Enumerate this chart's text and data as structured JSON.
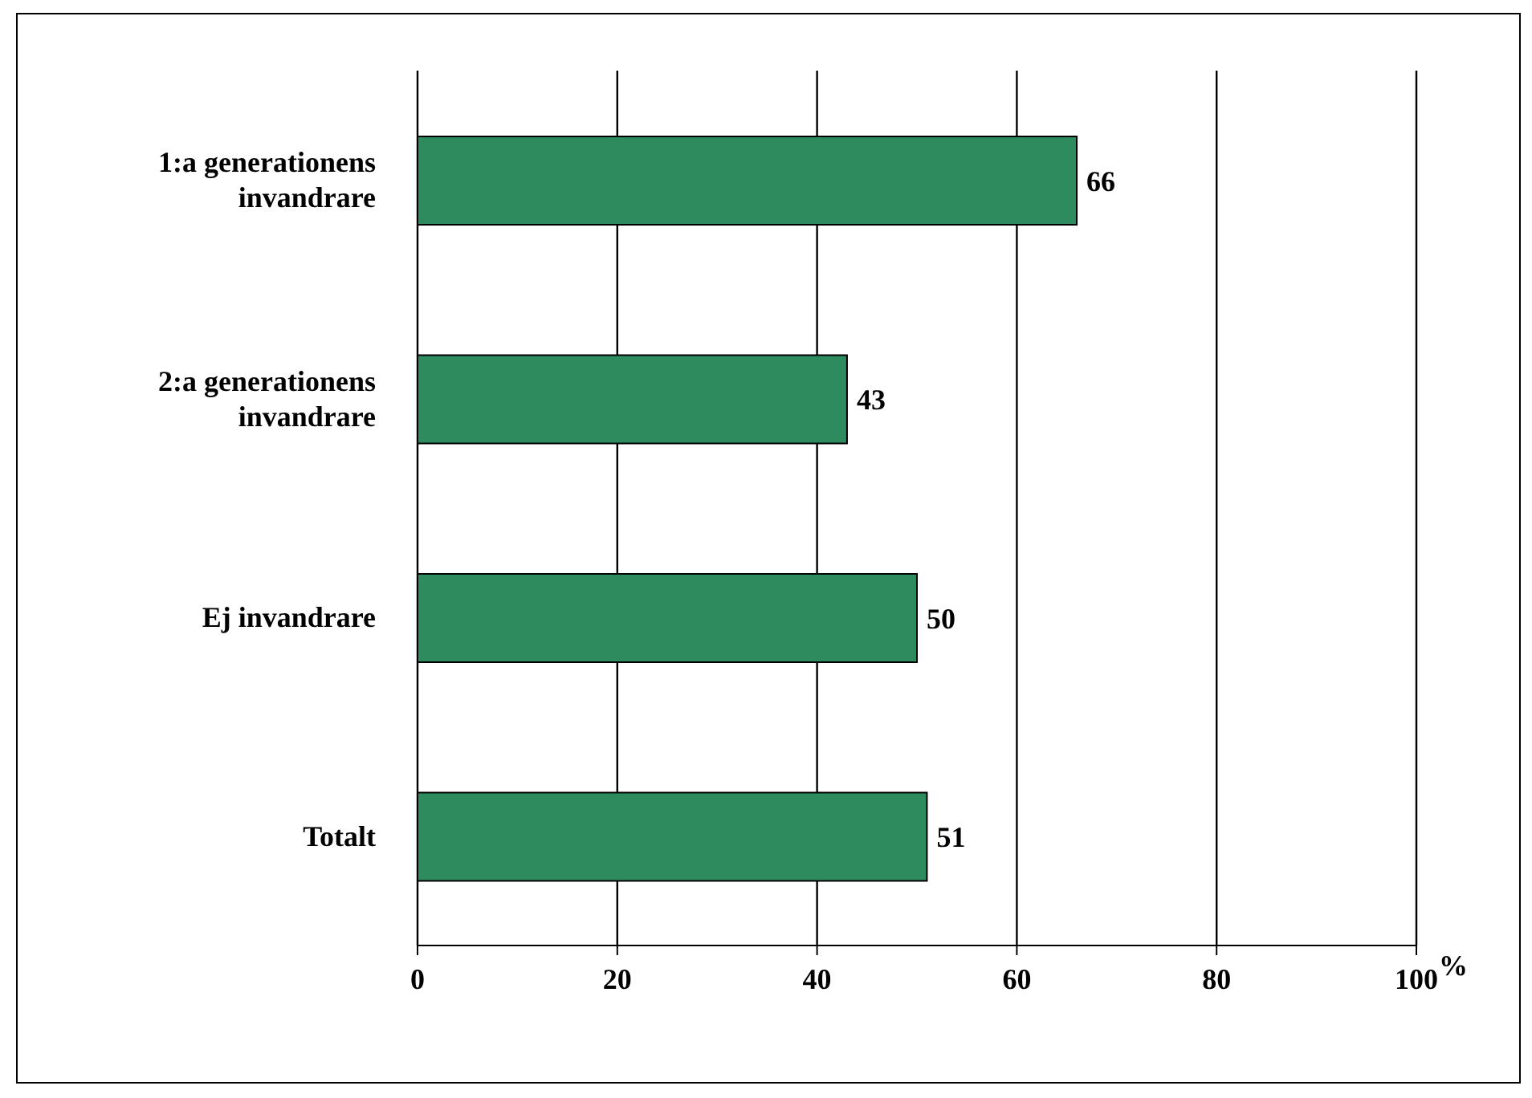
{
  "chart_data": {
    "type": "bar",
    "orientation": "horizontal",
    "categories": [
      "1:a generationens invandrare",
      "2:a generationens invandrare",
      "Ej invandrare",
      "Totalt"
    ],
    "values": [
      66,
      43,
      50,
      51
    ],
    "color": "#2e8b5e",
    "xlim": [
      0,
      100
    ],
    "xticks": [
      0,
      20,
      40,
      60,
      80,
      100
    ],
    "xlabel": "%",
    "grid": "x",
    "data_labels": true
  }
}
